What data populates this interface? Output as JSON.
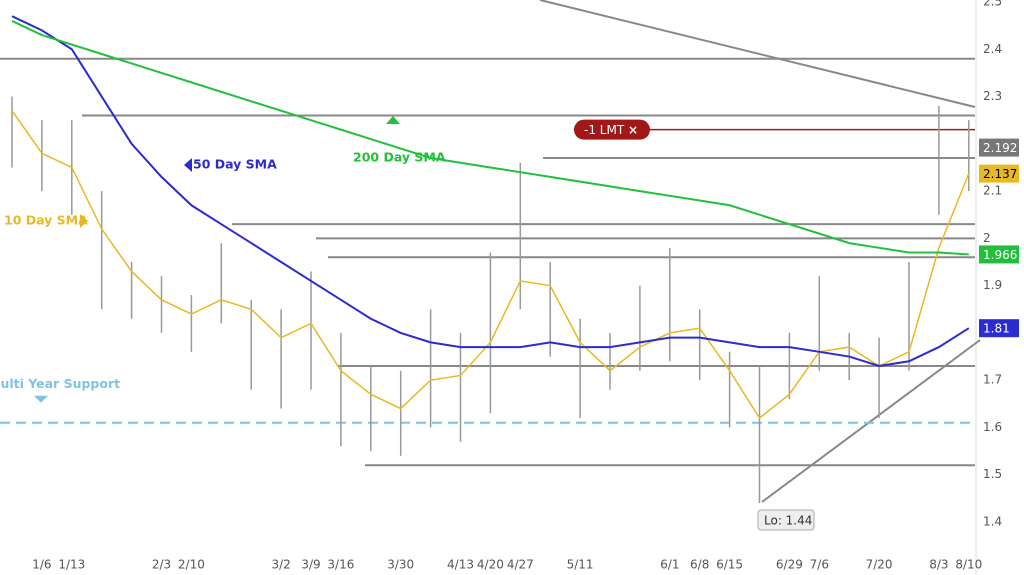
{
  "chart_data": {
    "type": "ohlc",
    "categories": [
      null,
      "1/6",
      "1/13",
      null,
      null,
      "2/3",
      "2/10",
      null,
      null,
      "3/2",
      "3/9",
      "3/16",
      null,
      "3/30",
      null,
      "4/13",
      "4/20",
      "4/27",
      null,
      "5/11",
      null,
      null,
      "6/1",
      "6/8",
      "6/15",
      null,
      "6/29",
      "7/6",
      null,
      "7/20",
      null,
      "8/3",
      "8/10"
    ],
    "high": [
      2.3,
      2.25,
      2.25,
      2.1,
      1.95,
      1.92,
      1.88,
      1.99,
      1.87,
      1.85,
      1.93,
      1.8,
      1.73,
      1.72,
      1.85,
      1.8,
      1.97,
      2.16,
      1.95,
      1.83,
      1.8,
      1.9,
      1.98,
      1.85,
      1.76,
      1.73,
      1.8,
      1.92,
      1.8,
      1.79,
      1.95,
      2.28,
      2.25
    ],
    "low": [
      2.15,
      2.1,
      2.05,
      1.85,
      1.83,
      1.8,
      1.76,
      1.82,
      1.68,
      1.64,
      1.68,
      1.56,
      1.55,
      1.54,
      1.6,
      1.57,
      1.63,
      1.85,
      1.75,
      1.62,
      1.68,
      1.72,
      1.74,
      1.7,
      1.6,
      1.44,
      1.66,
      1.72,
      1.7,
      1.62,
      1.72,
      2.05,
      2.1
    ],
    "price_color": "#999999",
    "last_price": 2.192,
    "series": [
      {
        "name": "10 Day SMA",
        "color": "#e8b923",
        "values": [
          2.27,
          2.18,
          2.15,
          2.02,
          1.93,
          1.87,
          1.84,
          1.87,
          1.85,
          1.79,
          1.82,
          1.72,
          1.67,
          1.64,
          1.7,
          1.71,
          1.78,
          1.91,
          1.9,
          1.78,
          1.72,
          1.77,
          1.8,
          1.81,
          1.72,
          1.62,
          1.67,
          1.76,
          1.77,
          1.73,
          1.76,
          1.98,
          2.137
        ]
      },
      {
        "name": "50 Day SMA",
        "color": "#2b2bd0",
        "values": [
          2.47,
          2.44,
          2.4,
          2.3,
          2.2,
          2.13,
          2.07,
          2.03,
          1.99,
          1.95,
          1.91,
          1.87,
          1.83,
          1.8,
          1.78,
          1.77,
          1.77,
          1.77,
          1.78,
          1.77,
          1.77,
          1.78,
          1.79,
          1.79,
          1.78,
          1.77,
          1.77,
          1.76,
          1.75,
          1.73,
          1.74,
          1.77,
          1.81
        ]
      },
      {
        "name": "200 Day SMA",
        "color": "#22c03a",
        "values": [
          2.46,
          2.43,
          2.41,
          2.39,
          2.37,
          2.35,
          2.33,
          2.31,
          2.29,
          2.27,
          2.25,
          2.23,
          2.21,
          2.19,
          2.17,
          2.16,
          2.15,
          2.14,
          2.13,
          2.12,
          2.11,
          2.1,
          2.09,
          2.08,
          2.07,
          2.05,
          2.03,
          2.01,
          1.99,
          1.98,
          1.97,
          1.97,
          1.966
        ]
      }
    ],
    "levels": [
      2.38,
      2.26,
      2.17,
      2.03,
      2.0,
      1.96,
      1.73,
      1.52
    ],
    "support": 1.61,
    "support_label": "Multi Year Support",
    "order_price": 2.23,
    "order_label": "-1 LMT",
    "order_close": "×",
    "low_label": "Lo: 1.44",
    "ylim": [
      1.29,
      2.5
    ],
    "yticks": [
      1.4,
      1.5,
      1.6,
      1.7,
      1.8,
      1.9,
      2,
      2.1,
      2.2,
      2.3,
      2.4,
      2.5
    ]
  }
}
